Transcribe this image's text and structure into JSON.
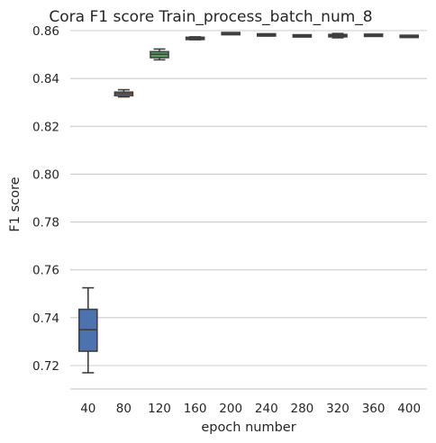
{
  "chart_data": {
    "type": "box",
    "title": "Cora F1 score Train_process_batch_num_8",
    "xlabel": "epoch number",
    "ylabel": "F1 score",
    "ylim": [
      0.71,
      0.86
    ],
    "yticks": [
      0.72,
      0.74,
      0.76,
      0.78,
      0.8,
      0.82,
      0.84,
      0.86
    ],
    "ytick_labels": [
      "0.72",
      "0.74",
      "0.76",
      "0.78",
      "0.80",
      "0.82",
      "0.84",
      "0.86"
    ],
    "grid": true,
    "categories": [
      "40",
      "80",
      "120",
      "160",
      "200",
      "240",
      "280",
      "320",
      "360",
      "400"
    ],
    "boxes": [
      {
        "category": "40",
        "whisker_low": 0.717,
        "q1": 0.726,
        "median": 0.735,
        "q3": 0.7435,
        "whisker_high": 0.7525,
        "color": "#4c72b0"
      },
      {
        "category": "80",
        "whisker_low": 0.8323,
        "q1": 0.8328,
        "median": 0.8336,
        "q3": 0.8343,
        "whisker_high": 0.8353,
        "color": "#dd8452"
      },
      {
        "category": "120",
        "whisker_low": 0.8478,
        "q1": 0.8487,
        "median": 0.8501,
        "q3": 0.8512,
        "whisker_high": 0.8523,
        "color": "#55a868"
      },
      {
        "category": "160",
        "whisker_low": 0.8562,
        "q1": 0.8564,
        "median": 0.8568,
        "q3": 0.8571,
        "whisker_high": 0.8574,
        "color": "#c44e52"
      },
      {
        "category": "200",
        "whisker_low": 0.8585,
        "q1": 0.8586,
        "median": 0.8587,
        "q3": 0.8589,
        "whisker_high": 0.859,
        "color": "#8172b3"
      },
      {
        "category": "240",
        "whisker_low": 0.8578,
        "q1": 0.858,
        "median": 0.8582,
        "q3": 0.8584,
        "whisker_high": 0.8586,
        "color": "#937860"
      },
      {
        "category": "280",
        "whisker_low": 0.8576,
        "q1": 0.8577,
        "median": 0.8578,
        "q3": 0.8579,
        "whisker_high": 0.858,
        "color": "#da8bc3"
      },
      {
        "category": "320",
        "whisker_low": 0.857,
        "q1": 0.8574,
        "median": 0.8579,
        "q3": 0.8584,
        "whisker_high": 0.8588,
        "color": "#8c8c8c"
      },
      {
        "category": "360",
        "whisker_low": 0.8578,
        "q1": 0.8579,
        "median": 0.858,
        "q3": 0.8582,
        "whisker_high": 0.8583,
        "color": "#ccb974"
      },
      {
        "category": "400",
        "whisker_low": 0.8572,
        "q1": 0.8574,
        "median": 0.8576,
        "q3": 0.8578,
        "whisker_high": 0.858,
        "color": "#64b5cd"
      }
    ]
  }
}
